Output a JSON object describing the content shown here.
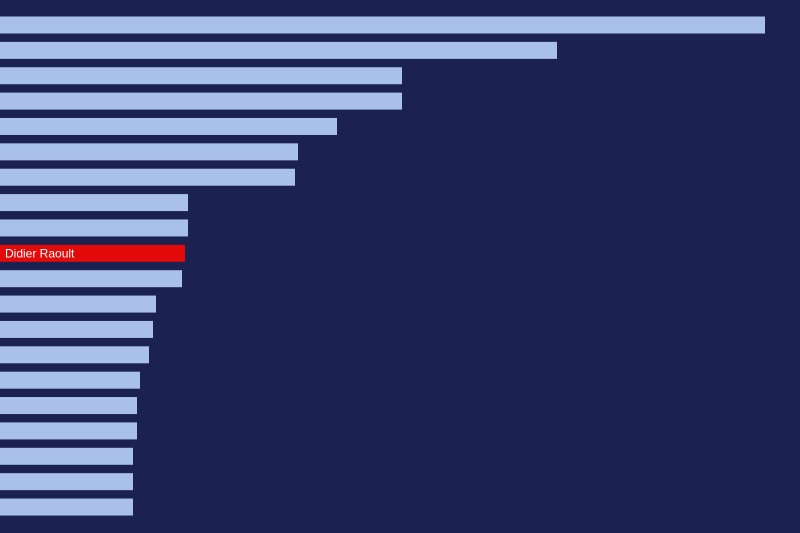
{
  "chart_data": {
    "type": "barh",
    "categories": [
      null,
      null,
      null,
      null,
      null,
      null,
      null,
      null,
      null,
      "Didier Raoult",
      null,
      null,
      null,
      null,
      null,
      null,
      null,
      null,
      null,
      null
    ],
    "values": [
      765,
      557,
      402,
      402,
      337,
      298,
      295,
      188,
      188,
      185,
      182,
      156,
      153,
      149,
      140,
      137,
      137,
      133,
      133,
      133
    ],
    "colors": [
      "#a9c1e8",
      "#a9c1e8",
      "#a9c1e8",
      "#a9c1e8",
      "#a9c1e8",
      "#a9c1e8",
      "#a9c1e8",
      "#a9c1e8",
      "#a9c1e8",
      "#e30a0a",
      "#a9c1e8",
      "#a9c1e8",
      "#a9c1e8",
      "#a9c1e8",
      "#a9c1e8",
      "#a9c1e8",
      "#a9c1e8",
      "#a9c1e8",
      "#a9c1e8",
      "#a9c1e8"
    ],
    "background": "#1b2250",
    "xlim": [
      0,
      800
    ]
  }
}
